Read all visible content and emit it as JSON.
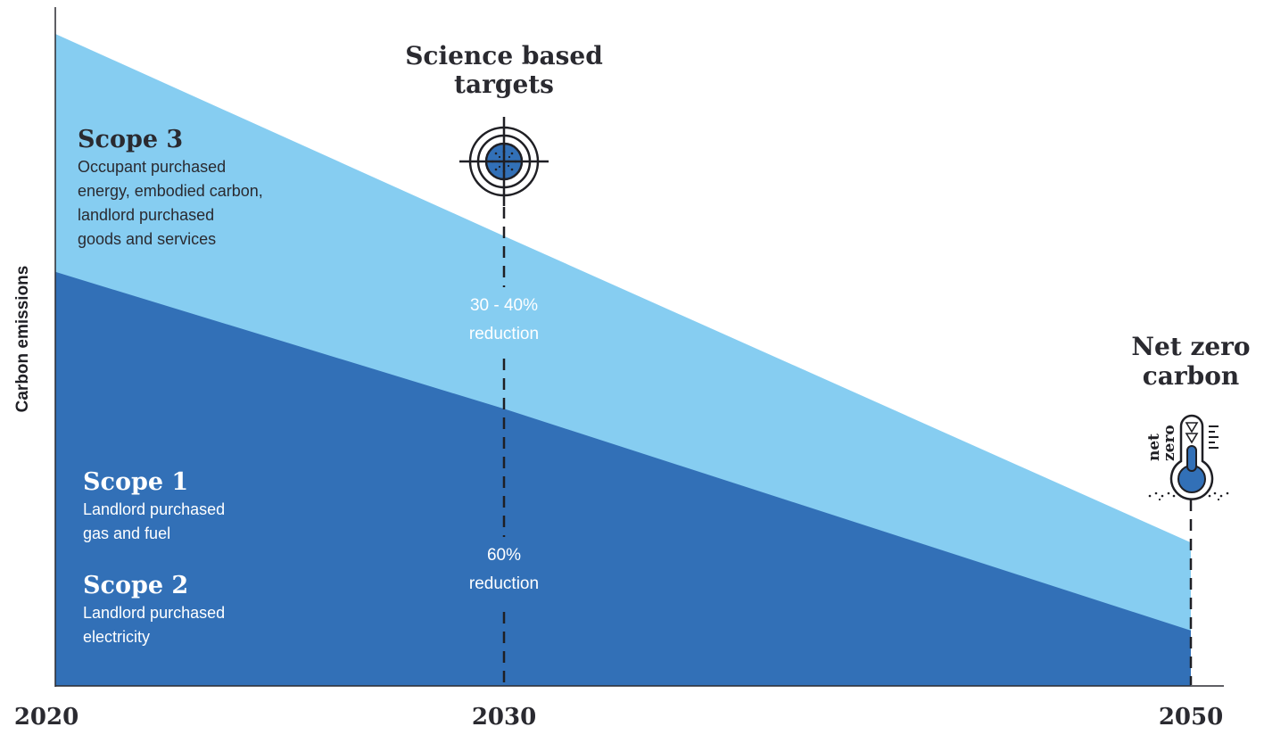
{
  "chart_data": {
    "type": "area",
    "ylabel": "Carbon emissions",
    "x_ticks": [
      "2020",
      "2030",
      "2050"
    ],
    "x": [
      2020,
      2030,
      2050
    ],
    "series": [
      {
        "name": "Scope 3",
        "description": [
          "Occupant purchased",
          "energy, embodied carbon,",
          "landlord purchased",
          "goods and services"
        ],
        "color": "#86cdf1",
        "values": [
          100,
          69,
          22
        ]
      },
      {
        "name": "Scope 1",
        "description": [
          "Landlord purchased",
          "gas and fuel"
        ],
        "color": "#3270b7",
        "values": [
          63.5,
          42.5,
          8.5
        ]
      },
      {
        "name": "Scope 2",
        "description": [
          "Landlord purchased",
          "electricity"
        ],
        "color": "#3270b7"
      }
    ],
    "annotations": [
      {
        "x": 2030,
        "title": [
          "Science based",
          "targets"
        ],
        "icon": "target-icon"
      },
      {
        "x": 2030,
        "label": [
          "30 - 40%",
          "reduction"
        ]
      },
      {
        "x": 2030,
        "label": [
          "60%",
          "reduction"
        ]
      },
      {
        "x": 2050,
        "title": [
          "Net zero",
          "carbon"
        ],
        "icon": "net-zero-thermometer-icon",
        "icon_text": [
          "net",
          "zero"
        ]
      }
    ],
    "ylim": [
      0,
      100
    ],
    "grid": false
  },
  "colors": {
    "light": "#86cdf1",
    "dark": "#3270b7",
    "ink": "#2a2a30",
    "white": "#ffffff"
  }
}
